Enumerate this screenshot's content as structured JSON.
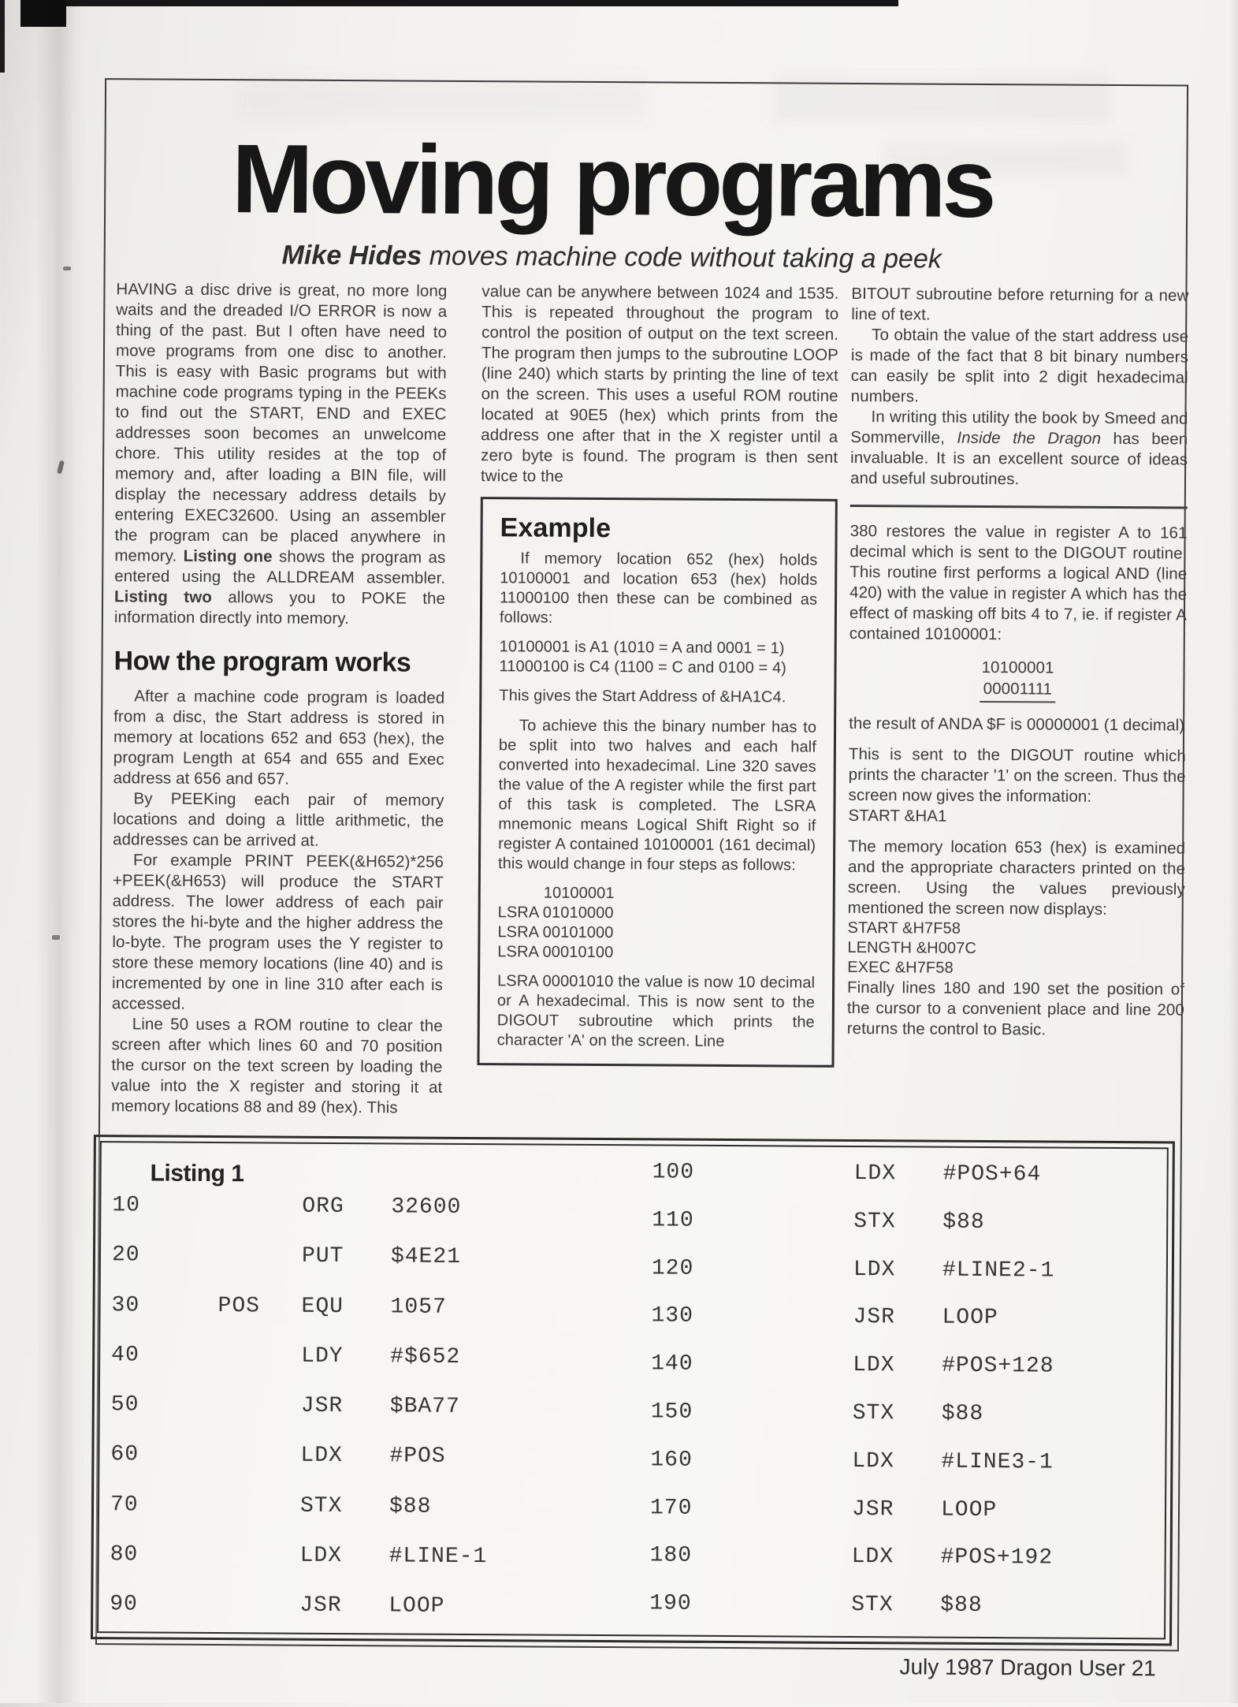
{
  "header": {
    "title": "Moving programs",
    "author": "Mike Hides",
    "tagline": " moves machine code without taking a peek"
  },
  "article": {
    "col1": {
      "p1_runs": [
        {
          "t": "HAVING a disc drive is great, no more long waits and the dreaded I/O ERROR is now a thing of the past. But I often have need to move programs from one disc to another. This is easy with Basic programs but with machine code programs typing in the PEEKs to find out the START, END and EXEC addresses soon becomes an unwelcome chore. This utility resides at the top of memory and, after loading a BIN file, will display the necessary address details by entering EXEC32600. Using an assembler the program can be placed anywhere in memory. "
        },
        {
          "t": "Listing one",
          "b": true
        },
        {
          "t": " shows the program as entered using the ALLDREAM assembler. "
        },
        {
          "t": "Listing two",
          "b": true
        },
        {
          "t": " allows you to POKE the information directly into memory."
        }
      ],
      "heading": "How the program works",
      "p2": "After a machine code program is loaded from a disc, the Start address is stored in memory at locations 652 and 653 (hex), the program Length at 654 and 655 and Exec address at 656 and 657.",
      "p3": "By PEEKing each pair of memory locations and doing a little arithmetic, the addresses can be arrived at.",
      "p4": "For example PRINT PEEK(&H652)*256 +PEEK(&H653) will produce the START address. The lower address of each pair stores the hi-byte and the higher address the lo-byte. The program uses the Y register to store these memory locations (line 40) and is incremented by one in line 310 after each is accessed.",
      "p5": "Line 50 uses a ROM routine to clear the screen after which lines 60 and 70 position the cursor on the text screen by loading the value into the X register and storing it at memory locations 88 and 89 (hex). This"
    },
    "col2": {
      "p1": "value can be anywhere between 1024 and 1535. This is repeated throughout the program to control the position of output on the text screen. The program then jumps to the subroutine LOOP (line 240) which starts by printing the line of text on the screen. This uses a useful ROM routine located at 90E5 (hex) which prints from the address one after that in the X register until a zero byte is found. The program is then sent twice to the",
      "example": {
        "heading": "Example",
        "p1": "If memory location 652 (hex) holds 10100001 and location 653 (hex) holds 11000100 then these can be combined as follows:",
        "conversion_lines": [
          "10100001 is A1 (1010 = A and 0001 = 1)",
          "11000100 is C4 (1100 = C and 0100 = 4)"
        ],
        "p2": "This gives the Start Address of &HA1C4.",
        "p3": "To achieve this the binary number has to be split into two halves and each half converted into hexadecimal. Line 320 saves the value of the A register while the first part of this task is completed. The LSRA mnemonic means Logical Shift Right so if register A contained 10100001 (161 decimal) this would change in four steps as follows:",
        "shift_lines": [
          "10100001",
          "LSRA 01010000",
          "LSRA 00101000",
          "LSRA 00010100"
        ],
        "p4": "LSRA 00001010 the value is now 10 decimal or A hexadecimal. This is now sent to the DIGOUT subroutine which prints the character 'A' on the screen. Line"
      }
    },
    "col3": {
      "p1": "BITOUT subroutine before returning for a new line of text.",
      "p2": "To obtain the value of the start address use is made of the fact that 8 bit binary numbers can easily be split into 2 digit hexadecimal numbers.",
      "p3_runs": [
        {
          "t": "In writing this utility the book by Smeed and Sommerville, "
        },
        {
          "t": "Inside the Dragon",
          "i": true
        },
        {
          "t": " has been invaluable. It is an excellent source of ideas and useful subroutines."
        }
      ],
      "p4": "380 restores the value in register A to 161 decimal which is sent to the DIGOUT routine. This routine first performs a logical AND (line 420) with the value in register A which has the effect of masking off bits 4 to 7, ie. if register A contained 10100001:",
      "and_operands": [
        "10100001",
        "00001111"
      ],
      "p5": "the result of ANDA $F is 00000001 (1 decimal)",
      "p6": "This is sent to the DIGOUT routine which prints the character '1' on the screen. Thus the screen now gives the information:",
      "p6_result": "START &HA1",
      "p7": "The memory location 653 (hex) is examined and the appropriate characters printed on the screen. Using the values previously mentioned the screen now displays:",
      "screen_lines": [
        "START &H7F58",
        "LENGTH &H007C",
        "EXEC &H7F58"
      ],
      "p8": "Finally lines 180 and 190 set the position of the cursor to a convenient place and line 200 returns the control to Basic."
    }
  },
  "listing": {
    "title": "Listing 1",
    "left_rows": [
      {
        "line": "10",
        "label": "",
        "op": "ORG",
        "operand": "32600"
      },
      {
        "line": "20",
        "label": "",
        "op": "PUT",
        "operand": "$4E21"
      },
      {
        "line": "30",
        "label": "POS",
        "op": "EQU",
        "operand": "1057"
      },
      {
        "line": "40",
        "label": "",
        "op": "LDY",
        "operand": "#$652"
      },
      {
        "line": "50",
        "label": "",
        "op": "JSR",
        "operand": "$BA77"
      },
      {
        "line": "60",
        "label": "",
        "op": "LDX",
        "operand": "#POS"
      },
      {
        "line": "70",
        "label": "",
        "op": "STX",
        "operand": "$88"
      },
      {
        "line": "80",
        "label": "",
        "op": "LDX",
        "operand": "#LINE-1"
      },
      {
        "line": "90",
        "label": "",
        "op": "JSR",
        "operand": "LOOP"
      }
    ],
    "right_rows": [
      {
        "line": "100",
        "label": "",
        "op": "LDX",
        "operand": "#POS+64"
      },
      {
        "line": "110",
        "label": "",
        "op": "STX",
        "operand": "$88"
      },
      {
        "line": "120",
        "label": "",
        "op": "LDX",
        "operand": "#LINE2-1"
      },
      {
        "line": "130",
        "label": "",
        "op": "JSR",
        "operand": "LOOP"
      },
      {
        "line": "140",
        "label": "",
        "op": "LDX",
        "operand": "#POS+128"
      },
      {
        "line": "150",
        "label": "",
        "op": "STX",
        "operand": "$88"
      },
      {
        "line": "160",
        "label": "",
        "op": "LDX",
        "operand": "#LINE3-1"
      },
      {
        "line": "170",
        "label": "",
        "op": "JSR",
        "operand": "LOOP"
      },
      {
        "line": "180",
        "label": "",
        "op": "LDX",
        "operand": "#POS+192"
      },
      {
        "line": "190",
        "label": "",
        "op": "STX",
        "operand": "$88"
      }
    ]
  },
  "footer": {
    "text": "July 1987 Dragon User 21"
  }
}
